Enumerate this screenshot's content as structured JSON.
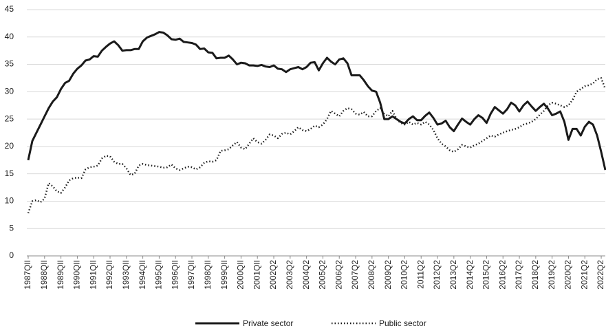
{
  "chart_data": {
    "type": "line",
    "categories": [
      "1987QII",
      null,
      null,
      null,
      "1988QII",
      null,
      null,
      null,
      "1989QII",
      null,
      null,
      null,
      "1990QII",
      null,
      null,
      null,
      "1991QII",
      null,
      null,
      null,
      "1992QII",
      null,
      null,
      null,
      "1993QII",
      null,
      null,
      null,
      "1994QII",
      null,
      null,
      null,
      "1995QII",
      null,
      null,
      null,
      "1996QII",
      null,
      null,
      null,
      "1997QII",
      null,
      null,
      null,
      "1998QII",
      null,
      null,
      null,
      "1999QII",
      null,
      null,
      null,
      "2000QII",
      null,
      null,
      null,
      "2001QII",
      null,
      null,
      null,
      "2002Q2",
      null,
      null,
      null,
      "2003Q2",
      null,
      null,
      null,
      "2004Q2",
      null,
      null,
      null,
      "2005Q2",
      null,
      null,
      null,
      "2006Q2",
      null,
      null,
      null,
      "2007Q2",
      null,
      null,
      null,
      "2008Q2",
      null,
      null,
      null,
      "2009Q2",
      null,
      null,
      null,
      "2010Q2",
      null,
      null,
      null,
      "2011Q2",
      null,
      null,
      null,
      "2012Q2",
      null,
      null,
      null,
      "2013Q2",
      null,
      null,
      null,
      "2014Q2",
      null,
      null,
      null,
      "2015Q2",
      null,
      null,
      null,
      "2016Q2",
      null,
      null,
      null,
      "2017Q2",
      null,
      null,
      null,
      "2018Q2",
      null,
      null,
      null,
      "2019Q2",
      null,
      null,
      null,
      "2020Q2",
      null,
      null,
      null,
      "2021Q2",
      null,
      null,
      null,
      "2022Q2",
      null
    ],
    "series": [
      {
        "name": "Private sector",
        "color": "#1a1a1a",
        "style": "solid",
        "values": [
          17.5,
          21,
          22.5,
          24,
          25.5,
          27,
          28.2,
          29,
          30.5,
          31.6,
          32,
          33.3,
          34.2,
          34.8,
          35.7,
          35.9,
          36.5,
          36.4,
          37.5,
          38.2,
          38.8,
          39.2,
          38.5,
          37.5,
          37.6,
          37.6,
          37.8,
          37.8,
          39.2,
          39.9,
          40.2,
          40.5,
          40.9,
          40.8,
          40.3,
          39.6,
          39.5,
          39.7,
          39.1,
          39.0,
          38.9,
          38.6,
          37.8,
          37.9,
          37.2,
          37.1,
          36.1,
          36.2,
          36.2,
          36.6,
          35.9,
          35.0,
          35.3,
          35.2,
          34.8,
          34.8,
          34.7,
          34.9,
          34.6,
          34.5,
          34.8,
          34.2,
          34.1,
          33.6,
          34.1,
          34.3,
          34.5,
          34.1,
          34.5,
          35.3,
          35.4,
          33.9,
          35.2,
          36.2,
          35.5,
          35.0,
          35.9,
          36.1,
          35.2,
          33.0,
          33.0,
          33.0,
          32.1,
          31.0,
          30.2,
          30.0,
          28.0,
          25.0,
          25.0,
          25.5,
          25.0,
          24.5,
          24.2,
          25.0,
          25.5,
          24.8,
          24.8,
          25.6,
          26.2,
          25.2,
          24.0,
          24.2,
          24.7,
          23.5,
          22.8,
          24.0,
          25.1,
          24.5,
          24.0,
          25.0,
          25.7,
          25.2,
          24.3,
          26.0,
          27.2,
          26.6,
          26.0,
          26.8,
          28.0,
          27.5,
          26.4,
          27.5,
          28.2,
          27.3,
          26.5,
          27.2,
          27.8,
          26.9,
          25.7,
          26.0,
          26.4,
          24.5,
          21.2,
          23.2,
          23.2,
          22.0,
          23.6,
          24.5,
          24.0,
          22.0,
          19.0,
          15.7
        ]
      },
      {
        "name": "Public sector",
        "color": "#1a1a1a",
        "style": "dotted",
        "values": [
          7.8,
          10.0,
          10.2,
          9.8,
          10.5,
          13.3,
          12.7,
          11.8,
          11.5,
          12.5,
          13.8,
          14.2,
          14.3,
          14.2,
          15.8,
          16.2,
          16.3,
          16.5,
          17.8,
          18.3,
          18.2,
          17.2,
          16.8,
          16.8,
          16.0,
          14.8,
          15.0,
          16.5,
          16.8,
          16.6,
          16.5,
          16.4,
          16.3,
          16.1,
          16.2,
          16.7,
          16.0,
          15.7,
          16.0,
          16.3,
          16.2,
          15.8,
          16.2,
          17.0,
          17.3,
          17.2,
          17.5,
          19.2,
          19.3,
          19.5,
          20.2,
          20.8,
          19.8,
          19.5,
          20.5,
          21.5,
          20.8,
          20.5,
          21.2,
          22.2,
          22.0,
          21.5,
          22.3,
          22.5,
          22.2,
          22.8,
          23.5,
          23.0,
          22.8,
          23.2,
          23.8,
          23.5,
          24.0,
          25.0,
          26.5,
          26.0,
          25.5,
          26.5,
          27.0,
          26.8,
          26.0,
          25.8,
          26.3,
          25.5,
          25.5,
          26.5,
          27.0,
          26.0,
          25.5,
          26.5,
          25.0,
          24.3,
          24.0,
          24.5,
          24.0,
          24.3,
          24.0,
          24.5,
          24.0,
          23.0,
          21.5,
          20.5,
          20.0,
          19.3,
          19.0,
          19.5,
          20.3,
          20.0,
          19.8,
          20.2,
          20.5,
          21.0,
          21.5,
          22.0,
          21.8,
          22.2,
          22.5,
          22.8,
          23.0,
          23.2,
          23.5,
          24.0,
          24.2,
          24.5,
          25.0,
          25.8,
          26.5,
          27.5,
          28.0,
          27.8,
          27.5,
          27.2,
          27.5,
          28.5,
          30.0,
          30.5,
          31.0,
          31.2,
          31.5,
          32.3,
          32.5,
          30.5
        ]
      }
    ],
    "ylim": [
      0,
      45
    ],
    "yticks": [
      0,
      5,
      10,
      15,
      20,
      25,
      30,
      35,
      40,
      45
    ],
    "grid": true,
    "legend": "bottom"
  }
}
